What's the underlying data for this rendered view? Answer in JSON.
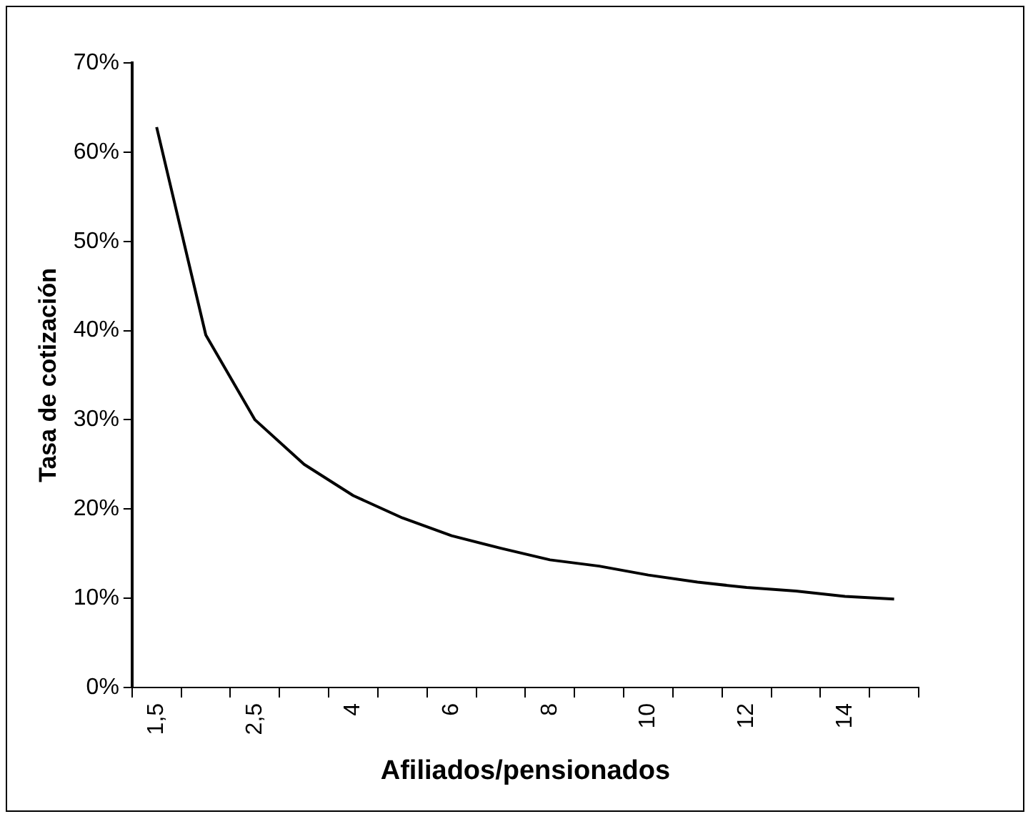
{
  "chart_data": {
    "type": "line",
    "xlabel": "Afiliados/pensionados",
    "ylabel": "Tasa de cotización",
    "categories": [
      "1,5",
      null,
      "2,5",
      null,
      "4",
      null,
      "6",
      null,
      "8",
      null,
      "10",
      null,
      "12",
      null,
      "14",
      null
    ],
    "series": [
      {
        "color": "#000000",
        "values": [
          62.8,
          39.5,
          30,
          25,
          21.5,
          19,
          17,
          15.6,
          14.3,
          13.6,
          12.6,
          11.8,
          11.2,
          10.8,
          10.2,
          9.9
        ]
      }
    ],
    "ylim": [
      0,
      70
    ],
    "yticks": [
      {
        "value": 0,
        "label": "0%"
      },
      {
        "value": 10,
        "label": "10%"
      },
      {
        "value": 20,
        "label": "20%"
      },
      {
        "value": 30,
        "label": "30%"
      },
      {
        "value": 40,
        "label": "40%"
      },
      {
        "value": 50,
        "label": "50%"
      },
      {
        "value": 60,
        "label": "60%"
      },
      {
        "value": 70,
        "label": "70%"
      }
    ],
    "grid": false,
    "legend": false,
    "marker": "none",
    "line_style": "solid"
  }
}
